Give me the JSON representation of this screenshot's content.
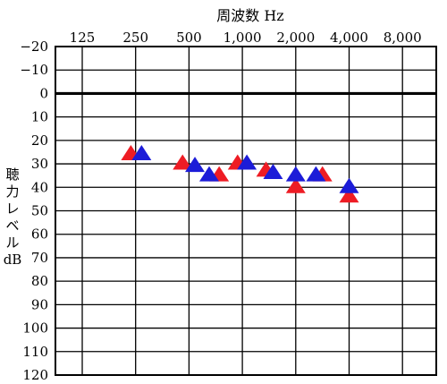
{
  "chart_data": {
    "type": "scatter",
    "title": "周波数 Hz",
    "ylabel": "聴力レベル dB",
    "ylabel_lines": [
      "聴",
      "力",
      "レ",
      "ベ",
      "ル",
      "dB"
    ],
    "x_tick_labels": [
      "125",
      "250",
      "500",
      "1,000",
      "2,000",
      "4,000",
      "8,000"
    ],
    "x_ticks": [
      125,
      250,
      500,
      1000,
      2000,
      4000,
      8000
    ],
    "x_scale": "log2",
    "y_tick_labels": [
      "−20",
      "−10",
      "0",
      "10",
      "20",
      "30",
      "40",
      "50",
      "60",
      "70",
      "80",
      "90",
      "100",
      "110",
      "120"
    ],
    "y_ticks": [
      -20,
      -10,
      0,
      10,
      20,
      30,
      40,
      50,
      60,
      70,
      80,
      90,
      100,
      110,
      120
    ],
    "ylim": [
      -20,
      120
    ],
    "y_inverted": true,
    "grid": true,
    "reference_line": 0,
    "series": [
      {
        "color": "#ee1c24",
        "marker": "triangle",
        "points": [
          {
            "x": 235,
            "y": 26
          },
          {
            "x": 460,
            "y": 30
          },
          {
            "x": 740,
            "y": 35
          },
          {
            "x": 940,
            "y": 30
          },
          {
            "x": 1360,
            "y": 33
          },
          {
            "x": 2000,
            "y": 40
          },
          {
            "x": 2830,
            "y": 35
          },
          {
            "x": 4000,
            "y": 44
          }
        ]
      },
      {
        "color": "#1c1cd8",
        "marker": "triangle",
        "points": [
          {
            "x": 270,
            "y": 26
          },
          {
            "x": 540,
            "y": 31
          },
          {
            "x": 650,
            "y": 35
          },
          {
            "x": 1060,
            "y": 30
          },
          {
            "x": 1490,
            "y": 34
          },
          {
            "x": 2000,
            "y": 35
          },
          {
            "x": 2600,
            "y": 35
          },
          {
            "x": 4000,
            "y": 40
          }
        ]
      }
    ]
  }
}
